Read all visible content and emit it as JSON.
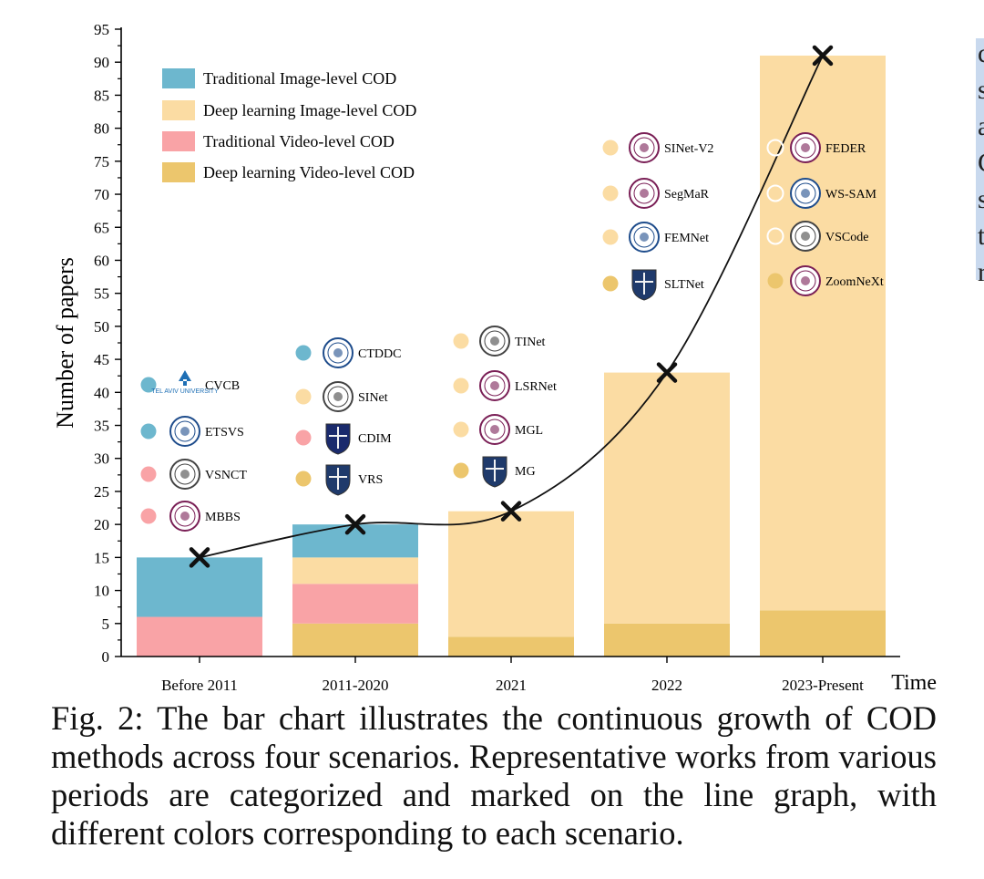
{
  "chart_data": {
    "type": "bar",
    "stacked": true,
    "xlabel": "Time",
    "ylabel": "Number of papers",
    "ylim": [
      0,
      95
    ],
    "yticks": [
      0,
      5,
      10,
      15,
      20,
      25,
      30,
      35,
      40,
      45,
      50,
      55,
      60,
      65,
      70,
      75,
      80,
      85,
      90,
      95
    ],
    "categories": [
      "Before 2011",
      "2011-2020",
      "2021",
      "2022",
      "2023-Present"
    ],
    "series": [
      {
        "name": "Traditional Image-level COD",
        "color": "#6db7ce",
        "values": [
          9,
          5,
          0,
          0,
          0
        ]
      },
      {
        "name": "Deep learning Image-level COD",
        "color": "#fbdca3",
        "values": [
          0,
          4,
          19,
          38,
          84
        ]
      },
      {
        "name": "Traditional Video-level COD",
        "color": "#f9a3a6",
        "values": [
          6,
          6,
          0,
          0,
          0
        ]
      },
      {
        "name": "Deep learning Video-level COD",
        "color": "#ecc66d",
        "values": [
          0,
          5,
          3,
          5,
          7
        ]
      }
    ],
    "stack_order": [
      3,
      2,
      1,
      0
    ],
    "trend_line": {
      "values": [
        15,
        20,
        22,
        43,
        91
      ],
      "marker": "x"
    },
    "legend": "top-left",
    "grid": false,
    "methods": [
      {
        "category": 0,
        "items": [
          {
            "name": "CVCB",
            "series": 0,
            "logo": "tel-aviv-university-logo",
            "logo_text": "TEL AVIV UNIVERSITY"
          },
          {
            "name": "ETSVS",
            "series": 0,
            "logo": "university-seal-logo"
          },
          {
            "name": "VSNCT",
            "series": 2,
            "logo": "university-seal-logo"
          },
          {
            "name": "MBBS",
            "series": 2,
            "logo": "university-seal-logo",
            "logo_text": "université"
          }
        ]
      },
      {
        "category": 1,
        "items": [
          {
            "name": "CTDDC",
            "series": 0,
            "logo": "university-seal-logo"
          },
          {
            "name": "SINet",
            "series": 1,
            "logo": "university-seal-logo"
          },
          {
            "name": "CDIM",
            "series": 2,
            "logo": "university-crest-logo"
          },
          {
            "name": "VRS",
            "series": 3,
            "logo": "university-crest-logo"
          }
        ]
      },
      {
        "category": 2,
        "items": [
          {
            "name": "TINet",
            "series": 1,
            "logo": "university-seal-logo"
          },
          {
            "name": "LSRNet",
            "series": 1,
            "logo": "university-seal-logo"
          },
          {
            "name": "MGL",
            "series": 1,
            "logo": "university-seal-logo"
          },
          {
            "name": "MG",
            "series": 3,
            "logo": "university-crest-logo"
          }
        ]
      },
      {
        "category": 3,
        "items": [
          {
            "name": "SINet-V2",
            "series": 1,
            "logo": "university-seal-logo"
          },
          {
            "name": "SegMaR",
            "series": 1,
            "logo": "university-seal-logo"
          },
          {
            "name": "FEMNet",
            "series": 1,
            "logo": "university-seal-logo"
          },
          {
            "name": "SLTNet",
            "series": 3,
            "logo": "university-crest-logo"
          }
        ]
      },
      {
        "category": 4,
        "items": [
          {
            "name": "FEDER",
            "series": 1,
            "logo": "university-seal-logo"
          },
          {
            "name": "WS-SAM",
            "series": 1,
            "logo": "university-seal-logo"
          },
          {
            "name": "VSCode",
            "series": 1,
            "logo": "university-seal-logo"
          },
          {
            "name": "ZoomNeXt",
            "series": 3,
            "logo": "university-seal-logo"
          }
        ]
      }
    ]
  },
  "caption": "Fig. 2: The bar chart illustrates the continuous growth of COD methods across four scenarios. Representative works from various periods are categorized and marked on the line graph, with different colors corresponding to each scenario.",
  "side_fragment": [
    "c",
    "s",
    "a",
    "C",
    "s",
    "t",
    "r"
  ]
}
